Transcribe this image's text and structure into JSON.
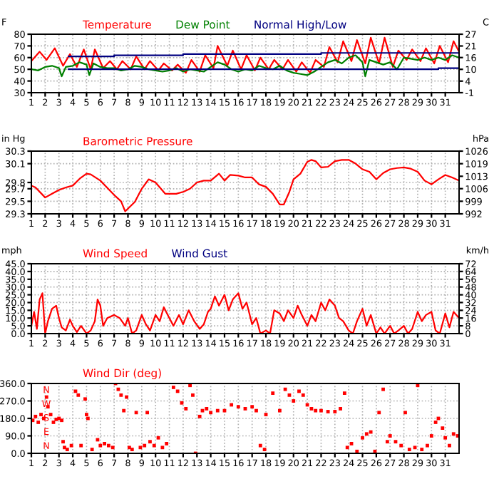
{
  "chart_data": [
    {
      "type": "line",
      "ylabel": "F",
      "y2label": "C",
      "legend": "top left",
      "grid": true,
      "marker": "none",
      "line_style": "solid",
      "xlim": [
        1,
        32
      ],
      "xticks": [
        1,
        2,
        3,
        4,
        5,
        6,
        7,
        8,
        9,
        10,
        11,
        12,
        13,
        14,
        15,
        16,
        17,
        18,
        19,
        20,
        21,
        22,
        23,
        24,
        25,
        26,
        27,
        28,
        29,
        30,
        31
      ],
      "ylim": [
        30,
        80
      ],
      "yticks": [
        30,
        40,
        50,
        60,
        70,
        80
      ],
      "y2lim": [
        -1.1,
        26.7
      ],
      "y2ticks": [
        {
          "value": -1.1,
          "label": "-1"
        },
        {
          "value": 4.4,
          "label": "4"
        },
        {
          "value": 10,
          "label": "10"
        },
        {
          "value": 15.6,
          "label": "16"
        },
        {
          "value": 21.1,
          "label": "21"
        },
        {
          "value": 26.7,
          "label": "27"
        }
      ],
      "series": [
        {
          "name": "Temperature",
          "color": "#ff0000",
          "x": [
            1,
            1.6,
            2.1,
            2.7,
            3.3,
            3.8,
            4.3,
            4.8,
            5.3,
            5.6,
            6.2,
            6.7,
            7.2,
            7.6,
            8.2,
            8.6,
            9.2,
            9.6,
            10.2,
            10.6,
            11.2,
            11.6,
            12.2,
            12.6,
            13.2,
            13.6,
            14.2,
            14.5,
            15.2,
            15.6,
            16.2,
            16.6,
            17.2,
            17.6,
            18.2,
            18.6,
            19.2,
            19.6,
            20.2,
            20.6,
            21.2,
            21.6,
            22.2,
            22.6,
            23.2,
            23.6,
            24.2,
            24.6,
            25.2,
            25.6,
            26.2,
            26.6,
            27.2,
            27.6,
            28.2,
            28.6,
            29.2,
            29.6,
            30.2,
            30.6,
            31.2,
            31.6,
            32
          ],
          "values": [
            57,
            65,
            58,
            68,
            53,
            63,
            52,
            67,
            50,
            67,
            51,
            57,
            50,
            57,
            50,
            61,
            50,
            57,
            49,
            55,
            49,
            54,
            47,
            58,
            48,
            62,
            51,
            70,
            53,
            66,
            50,
            62,
            49,
            60,
            50,
            58,
            50,
            58,
            48,
            56,
            47,
            58,
            52,
            69,
            56,
            74,
            57,
            75,
            55,
            77,
            55,
            77,
            52,
            66,
            58,
            67,
            57,
            68,
            55,
            70,
            56,
            74,
            65
          ]
        },
        {
          "name": "Dew Point",
          "color": "#008000",
          "x": [
            1,
            1.5,
            2,
            2.5,
            3,
            3.2,
            3.5,
            4,
            4.5,
            5,
            5.2,
            5.5,
            6,
            6.5,
            7,
            7.5,
            8,
            8.5,
            9,
            9.5,
            10,
            10.5,
            11,
            11.5,
            12,
            12.5,
            13,
            13.5,
            14,
            14.5,
            15,
            15.5,
            16,
            16.5,
            17,
            17.5,
            18,
            18.5,
            19,
            19.5,
            20,
            20.5,
            21,
            21.5,
            22,
            22.5,
            23,
            23.5,
            24,
            24.5,
            25,
            25.2,
            25.5,
            26,
            26.5,
            27,
            27.5,
            28,
            28.5,
            29,
            29.5,
            30,
            30.5,
            31,
            31.5,
            32
          ],
          "values": [
            50,
            49,
            52,
            53,
            51,
            44,
            52,
            53,
            56,
            54,
            45,
            55,
            52,
            51,
            51,
            49,
            50,
            53,
            52,
            50,
            49,
            48,
            49,
            51,
            48,
            50,
            49,
            48,
            52,
            56,
            54,
            50,
            48,
            50,
            49,
            53,
            51,
            50,
            53,
            49,
            47,
            46,
            45,
            48,
            52,
            56,
            58,
            55,
            60,
            62,
            56,
            44,
            58,
            56,
            54,
            56,
            50,
            60,
            59,
            58,
            60,
            58,
            60,
            58,
            62,
            60
          ]
        },
        {
          "name": "Normal High/Low",
          "color": "#000080",
          "x": [
            3.7,
            7,
            7,
            12,
            12,
            22,
            22,
            32
          ],
          "values": [
            61,
            61,
            62,
            62,
            63,
            63,
            64,
            64
          ]
        },
        {
          "color": "#000080",
          "x": [
            3.7,
            30.5,
            30.5,
            32
          ],
          "values": [
            50,
            50,
            51,
            51
          ]
        }
      ]
    },
    {
      "type": "line",
      "ylabel": "in Hg",
      "y2label": "hPa",
      "legend": "top left",
      "grid": true,
      "marker": "none",
      "line_style": "solid",
      "xlim": [
        1,
        32
      ],
      "xticks": [
        1,
        2,
        3,
        4,
        5,
        6,
        7,
        8,
        9,
        10,
        11,
        12,
        13,
        14,
        15,
        16,
        17,
        18,
        19,
        20,
        21,
        22,
        23,
        24,
        25,
        26,
        27,
        28,
        29,
        30,
        31
      ],
      "ylim": [
        29.3,
        30.3
      ],
      "yticks": [
        29.3,
        29.5,
        29.7,
        29.8,
        30.1,
        30.3
      ],
      "y2lim": [
        992.2,
        1026.1
      ],
      "y2ticks": [
        {
          "value": 992.2,
          "label": "992"
        },
        {
          "value": 999.0,
          "label": "999"
        },
        {
          "value": 1005.8,
          "label": "1006"
        },
        {
          "value": 1012.5,
          "label": "1013"
        },
        {
          "value": 1019.3,
          "label": "1019"
        },
        {
          "value": 1026.1,
          "label": "1026"
        }
      ],
      "series": [
        {
          "name": "Barometric Pressure",
          "color": "#ff0000",
          "x": [
            1,
            1.3,
            2,
            2.5,
            3,
            3.5,
            4,
            4.5,
            5,
            5.3,
            6,
            7,
            7.5,
            7.8,
            8.5,
            9,
            9.5,
            10,
            10.7,
            11.5,
            12,
            12.5,
            13,
            13.5,
            14,
            14.6,
            15,
            15.4,
            16,
            16.5,
            17,
            17.5,
            18,
            18.5,
            19,
            19.3,
            19.7,
            20,
            20.5,
            21,
            21.3,
            21.6,
            22,
            22.5,
            23,
            23.5,
            24,
            24.5,
            25,
            25.5,
            26,
            26.5,
            27,
            27.5,
            28,
            28.5,
            29,
            29.5,
            30,
            30.5,
            31,
            31.5,
            32
          ],
          "values": [
            29.75,
            29.72,
            29.56,
            29.62,
            29.68,
            29.72,
            29.75,
            29.86,
            29.94,
            29.93,
            29.83,
            29.6,
            29.5,
            29.34,
            29.49,
            29.7,
            29.85,
            29.8,
            29.62,
            29.62,
            29.65,
            29.7,
            29.8,
            29.83,
            29.83,
            29.94,
            29.83,
            29.92,
            29.91,
            29.88,
            29.88,
            29.77,
            29.73,
            29.62,
            29.45,
            29.45,
            29.65,
            29.85,
            29.94,
            30.13,
            30.16,
            30.14,
            30.04,
            30.05,
            30.14,
            30.16,
            30.16,
            30.1,
            30.01,
            29.97,
            29.85,
            29.95,
            30.01,
            30.03,
            30.04,
            30.02,
            29.97,
            29.83,
            29.77,
            29.85,
            29.92,
            29.88,
            29.83
          ]
        }
      ]
    },
    {
      "type": "line",
      "ylabel": "mph",
      "y2label": "km/h",
      "legend": "top left",
      "grid": true,
      "marker": "none",
      "line_style": "solid",
      "xlim": [
        1,
        32
      ],
      "xticks": [
        1,
        2,
        3,
        4,
        5,
        6,
        7,
        8,
        9,
        10,
        11,
        12,
        13,
        14,
        15,
        16,
        17,
        18,
        19,
        20,
        21,
        22,
        23,
        24,
        25,
        26,
        27,
        28,
        29,
        30,
        31
      ],
      "ylim": [
        0,
        45
      ],
      "yticks": [
        {
          "value": 0,
          "label": "0.0"
        },
        {
          "value": 5,
          "label": "5.0"
        },
        {
          "value": 10,
          "label": "10.0"
        },
        {
          "value": 15,
          "label": "15.0"
        },
        {
          "value": 20,
          "label": "20.0"
        },
        {
          "value": 25,
          "label": "25.0"
        },
        {
          "value": 30,
          "label": "30.0"
        },
        {
          "value": 35,
          "label": "35.0"
        },
        {
          "value": 40,
          "label": "40.0"
        },
        {
          "value": 45,
          "label": "45.0"
        }
      ],
      "y2lim": [
        0,
        72.4
      ],
      "y2ticks": [
        0,
        {
          "value": 8.05,
          "label": "8"
        },
        {
          "value": 16.1,
          "label": "16"
        },
        {
          "value": 24.1,
          "label": "24"
        },
        {
          "value": 32.2,
          "label": "32"
        },
        {
          "value": 40.2,
          "label": "40"
        },
        {
          "value": 48.3,
          "label": "48"
        },
        {
          "value": 56.3,
          "label": "56"
        },
        {
          "value": 64.4,
          "label": "64"
        },
        {
          "value": 72.4,
          "label": "72"
        }
      ],
      "series": [
        {
          "name": "Wind Speed",
          "color": "#ff0000",
          "x": [
            1,
            1.2,
            1.4,
            1.6,
            1.8,
            2,
            2.2,
            2.5,
            2.8,
            3,
            3.2,
            3.5,
            3.8,
            4,
            4.3,
            4.6,
            5,
            5.3,
            5.6,
            5.8,
            6,
            6.2,
            6.5,
            7,
            7.4,
            7.8,
            8,
            8.3,
            8.6,
            9,
            9.3,
            9.6,
            10,
            10.3,
            10.6,
            11,
            11.3,
            11.7,
            12,
            12.4,
            12.8,
            13.2,
            13.5,
            13.8,
            14,
            14.3,
            14.6,
            15,
            15.3,
            15.6,
            16,
            16.3,
            16.6,
            17,
            17.3,
            17.6,
            18,
            18.3,
            18.6,
            19,
            19.3,
            19.6,
            20,
            20.3,
            20.6,
            21,
            21.3,
            21.6,
            22,
            22.3,
            22.6,
            23,
            23.3,
            23.6,
            24,
            24.3,
            24.6,
            25,
            25.3,
            25.6,
            26,
            26.3,
            26.6,
            27,
            27.3,
            27.6,
            28,
            28.3,
            28.6,
            29,
            29.3,
            29.6,
            30,
            30.3,
            30.6,
            31,
            31.3,
            31.6,
            32
          ],
          "values": [
            5,
            14,
            3,
            22,
            26,
            0,
            8,
            16,
            18,
            10,
            4,
            2,
            9,
            5,
            1,
            5,
            0,
            2,
            8,
            22,
            18,
            5,
            10,
            12,
            10,
            5,
            10,
            0,
            2,
            12,
            6,
            2,
            12,
            8,
            17,
            10,
            5,
            12,
            6,
            15,
            8,
            3,
            6,
            14,
            16,
            24,
            18,
            25,
            15,
            22,
            26,
            16,
            20,
            6,
            10,
            0,
            2,
            0,
            15,
            13,
            8,
            15,
            10,
            18,
            12,
            5,
            12,
            8,
            20,
            15,
            22,
            18,
            10,
            8,
            2,
            0,
            8,
            16,
            5,
            12,
            0,
            4,
            0,
            5,
            0,
            2,
            5,
            0,
            3,
            14,
            8,
            12,
            14,
            2,
            0,
            13,
            4,
            14,
            10
          ]
        },
        {
          "name": "Wind Gust",
          "color": "#000080"
        }
      ]
    },
    {
      "type": "scatter",
      "legend": "top left",
      "grid": true,
      "marker": "square",
      "xlim": [
        1,
        32
      ],
      "xticks": [
        1,
        2,
        3,
        4,
        5,
        6,
        7,
        8,
        9,
        10,
        11,
        12,
        13,
        14,
        15,
        16,
        17,
        18,
        19,
        20,
        21,
        22,
        23,
        24,
        25,
        26,
        27,
        28,
        29,
        30,
        31
      ],
      "ylim": [
        0,
        360
      ],
      "yticks": [
        {
          "value": 0,
          "label": "0.0"
        },
        {
          "value": 90,
          "label": "90.0"
        },
        {
          "value": 180,
          "label": "180.0"
        },
        {
          "value": 270,
          "label": "270.0"
        },
        {
          "value": 360,
          "label": "360.0"
        }
      ],
      "annotations": [
        "N",
        "W",
        "S",
        "E",
        "N"
      ],
      "series": [
        {
          "name": "Wind Dir (deg)",
          "color": "#ff0000",
          "x": [
            1.1,
            1.3,
            1.5,
            1.7,
            1.9,
            2.1,
            2.2,
            2.4,
            2.6,
            2.8,
            3,
            3.2,
            3.3,
            3.4,
            3.6,
            3.9,
            4.2,
            4.4,
            4.6,
            4.9,
            5,
            5.1,
            5.4,
            5.8,
            6,
            6.3,
            6.6,
            6.9,
            7.1,
            7.3,
            7.5,
            7.7,
            7.9,
            8.1,
            8.3,
            8.6,
            8.9,
            9.2,
            9.4,
            9.6,
            9.9,
            10.2,
            10.5,
            10.8,
            11.3,
            11.6,
            11.9,
            12.2,
            12.5,
            12.7,
            12.9,
            13.2,
            13.4,
            13.7,
            14,
            14.5,
            15,
            15.5,
            16,
            16.5,
            17,
            17.3,
            17.6,
            17.9,
            18,
            18.5,
            19,
            19.4,
            19.7,
            20,
            20.4,
            20.7,
            21,
            21.3,
            21.6,
            22,
            22.5,
            23,
            23.4,
            23.7,
            23.9,
            24.2,
            24.6,
            25,
            25.3,
            25.6,
            25.9,
            26.2,
            26.5,
            26.8,
            27,
            27.4,
            27.8,
            28.1,
            28.4,
            28.8,
            29,
            29.3,
            29.7,
            30,
            30.3,
            30.5,
            30.8,
            31,
            31.3,
            31.6,
            31.9
          ],
          "values": [
            170,
            190,
            160,
            200,
            180,
            290,
            240,
            200,
            160,
            175,
            180,
            170,
            60,
            30,
            20,
            40,
            320,
            300,
            40,
            280,
            200,
            180,
            20,
            70,
            40,
            50,
            40,
            30,
            360,
            330,
            300,
            220,
            290,
            30,
            20,
            210,
            30,
            40,
            210,
            60,
            40,
            80,
            30,
            50,
            340,
            320,
            260,
            230,
            350,
            300,
            0,
            190,
            220,
            230,
            210,
            220,
            220,
            250,
            240,
            230,
            240,
            220,
            40,
            20,
            200,
            310,
            220,
            330,
            300,
            270,
            320,
            300,
            250,
            230,
            220,
            220,
            215,
            215,
            230,
            310,
            30,
            50,
            10,
            80,
            100,
            110,
            10,
            210,
            330,
            60,
            90,
            60,
            40,
            210,
            20,
            30,
            350,
            20,
            40,
            90,
            160,
            180,
            130,
            80,
            40,
            100,
            90
          ]
        }
      ]
    }
  ]
}
